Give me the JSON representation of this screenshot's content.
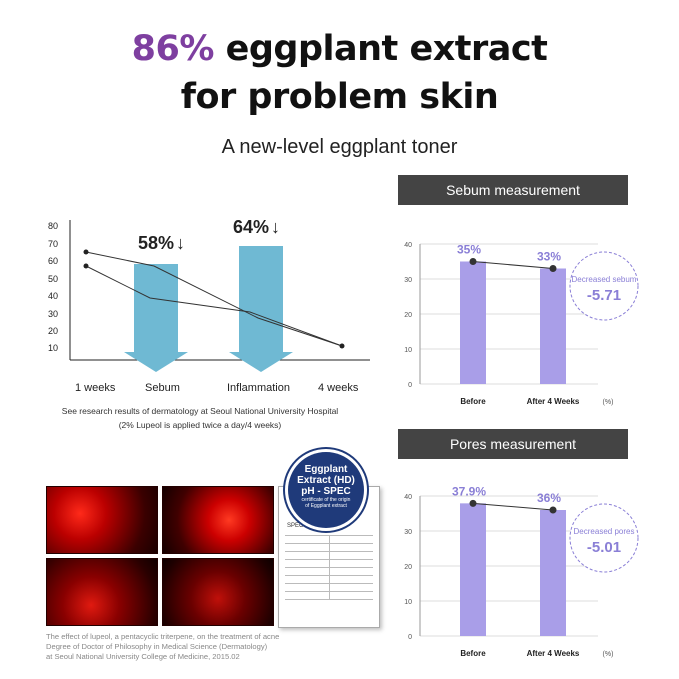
{
  "header": {
    "headline_accent": "86%",
    "headline_rest": " eggplant extract",
    "headline_line2": "for problem skin",
    "subhead": "A new-level eggplant toner"
  },
  "left_chart": {
    "yticks": [
      "80",
      "70",
      "60",
      "50",
      "40",
      "30",
      "20",
      "10"
    ],
    "xlabels": [
      "1 weeks",
      "Sebum",
      "Inflammation",
      "4 weeks"
    ],
    "sebum_pct": "58%",
    "inflammation_pct": "64%",
    "down_arrow": "↓",
    "caption_line1": "See research results of dermatology at Seoul National University Hospital",
    "caption_line2": "(2% Lupeol is applied twice a day/4 weeks)"
  },
  "paper": {
    "line1": "The effect of lupeol, a pentacyclic triterpene, on the treatment of acne",
    "line2": "Degree of Doctor of Philosophy in Medical Science (Dermatology)",
    "line3": "at Seoul National University College of Medicine, 2015.02"
  },
  "certificate": {
    "seal_line1": "Eggplant",
    "seal_line2": "Extract (HD)",
    "seal_line3": "pH - SPEC",
    "seal_line4": "certificate of the origin",
    "seal_line5": "of Eggplant extract",
    "doc_title": "SPECIFICATION"
  },
  "chart_data": [
    {
      "type": "bar",
      "title": "Sebum measurement",
      "categories": [
        "Before",
        "After 4 Weeks"
      ],
      "values": [
        35,
        33
      ],
      "value_labels": [
        "35%",
        "33%"
      ],
      "ylim": [
        0,
        40
      ],
      "yticks": [
        "40",
        "30",
        "20",
        "10",
        "0"
      ],
      "unit": "(%)",
      "callout_label": "Decreased sebum",
      "callout_value": "-5.71",
      "bar_color": "#a99ee8"
    },
    {
      "type": "bar",
      "title": "Pores measurement",
      "categories": [
        "Before",
        "After 4 Weeks"
      ],
      "values": [
        37.9,
        36
      ],
      "value_labels": [
        "37.9%",
        "36%"
      ],
      "ylim": [
        0,
        40
      ],
      "yticks": [
        "40",
        "30",
        "20",
        "10",
        "0"
      ],
      "unit": "(%)",
      "callout_label": "Decreased pores",
      "callout_value": "-5.01",
      "bar_color": "#a99ee8"
    }
  ]
}
